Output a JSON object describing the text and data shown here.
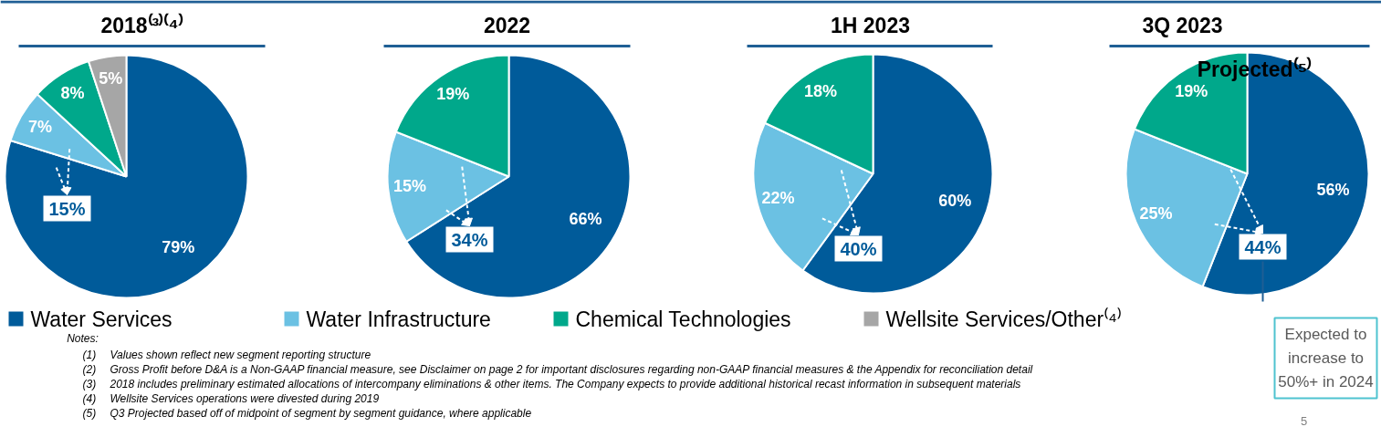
{
  "chart_data": [
    {
      "type": "pie",
      "title": "2018⁽³⁾⁽⁴⁾",
      "categories": [
        "Water Services",
        "Water Infrastructure",
        "Chemical Technologies",
        "Wellsite Services/Other⁽⁴⁾"
      ],
      "values": [
        79,
        7,
        8,
        5
      ],
      "colors": [
        "#005b9a",
        "#6bc1e3",
        "#00a88b",
        "#a6a6a6"
      ],
      "value_labels": [
        "79%",
        "7%",
        "8%",
        "5%"
      ],
      "legend": "bottom",
      "annotations": [
        "15%",
        "Notes:",
        "(1) Values shown reflect new segment reporting structure",
        "(2) Gross Profit before D&A is a Non-GAAP financial measure, see Disclaimer on page 2 for important disclosures regarding non-GAAP financial measures & the Appendix for reconciliation detail",
        "(3) 2018 includes preliminary estimated allocations of intercompany eliminations & other items. The Company expects to provide additional historical recast information in subsequent materials",
        "(4) Wellsite Services operations were divested during 2019",
        "(5) Q3 Projected based off of midpoint of segment by segment guidance, where applicable",
        "5"
      ]
    },
    {
      "type": "pie",
      "title": "2022",
      "categories": [
        null,
        null,
        null
      ],
      "values": [
        66,
        15,
        19
      ],
      "colors": [
        "#005b9a",
        "#6bc1e3",
        "#00a88b"
      ],
      "value_labels": [
        "66%",
        "15%",
        "19%"
      ],
      "annotations": [
        "34%"
      ]
    },
    {
      "type": "pie",
      "title": "1H 2023",
      "categories": [
        null,
        null,
        null
      ],
      "values": [
        60,
        22,
        18
      ],
      "colors": [
        "#005b9a",
        "#6bc1e3",
        "#00a88b"
      ],
      "value_labels": [
        "60%",
        "22%",
        "18%"
      ],
      "annotations": [
        "40%"
      ]
    },
    {
      "type": "pie",
      "title": "3Q 2023 Projected⁽⁵⁾",
      "categories": [
        null,
        null,
        null
      ],
      "values": [
        56,
        25,
        19
      ],
      "colors": [
        "#005b9a",
        "#6bc1e3",
        "#00a88b"
      ],
      "value_labels": [
        "56%",
        "25%",
        "19%"
      ],
      "annotations": [
        "44%",
        "Expected to increase to 50%+ in 2024"
      ]
    }
  ]
}
